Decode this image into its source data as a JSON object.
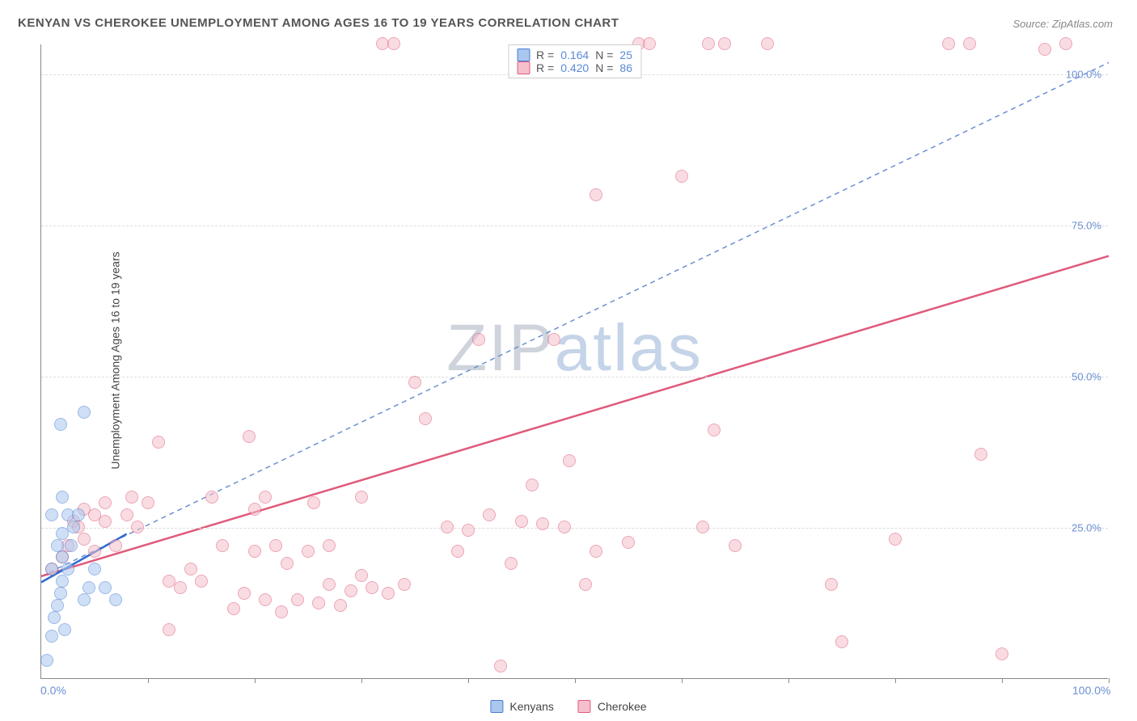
{
  "title": "KENYAN VS CHEROKEE UNEMPLOYMENT AMONG AGES 16 TO 19 YEARS CORRELATION CHART",
  "source": "Source: ZipAtlas.com",
  "ylabel": "Unemployment Among Ages 16 to 19 years",
  "watermark": {
    "part1": "ZIP",
    "part2": "atlas"
  },
  "chart": {
    "type": "scatter",
    "background_color": "#ffffff",
    "grid_color": "#dddddd",
    "axis_color": "#888888",
    "label_color": "#6b8fd4",
    "xlim": [
      0,
      100
    ],
    "ylim": [
      0,
      105
    ],
    "xlim_labels": {
      "min": "0.0%",
      "max": "100.0%"
    },
    "ytick_values": [
      25,
      50,
      75,
      100
    ],
    "ytick_labels": [
      "25.0%",
      "50.0%",
      "75.0%",
      "100.0%"
    ],
    "xtick_values": [
      10,
      20,
      30,
      40,
      50,
      60,
      70,
      80,
      90,
      100
    ],
    "marker_radius": 8,
    "marker_opacity": 0.55,
    "reference_line": {
      "x1": 0,
      "y1": 17,
      "x2": 100,
      "y2": 102,
      "color": "#6b8fd4",
      "dash": "6,5",
      "width": 1.5
    },
    "series": [
      {
        "name": "Kenyans",
        "fill_color": "#a9c7ef",
        "stroke_color": "#4a7fd1",
        "points": [
          [
            0.5,
            3
          ],
          [
            1,
            7
          ],
          [
            1.2,
            10
          ],
          [
            1.5,
            12
          ],
          [
            1.8,
            14
          ],
          [
            2,
            16
          ],
          [
            1,
            18
          ],
          [
            2.5,
            18
          ],
          [
            2,
            20
          ],
          [
            1.5,
            22
          ],
          [
            2.8,
            22
          ],
          [
            2,
            24
          ],
          [
            3,
            25
          ],
          [
            1,
            27
          ],
          [
            2.5,
            27
          ],
          [
            3.5,
            27
          ],
          [
            2,
            30
          ],
          [
            4,
            13
          ],
          [
            4.5,
            15
          ],
          [
            5,
            18
          ],
          [
            6,
            15
          ],
          [
            7,
            13
          ],
          [
            1.8,
            42
          ],
          [
            4,
            44
          ],
          [
            2.2,
            8
          ]
        ],
        "trend": {
          "x1": 0,
          "y1": 16,
          "x2": 8,
          "y2": 24,
          "color": "#2e6bd0",
          "width": 2.5
        },
        "R": "0.164",
        "N": "25"
      },
      {
        "name": "Cherokee",
        "fill_color": "#f5c0cc",
        "stroke_color": "#e05a7c",
        "points": [
          [
            1,
            18
          ],
          [
            2,
            20
          ],
          [
            2.5,
            22
          ],
          [
            3,
            26
          ],
          [
            3.5,
            25
          ],
          [
            4,
            28
          ],
          [
            4,
            23
          ],
          [
            5,
            21
          ],
          [
            5,
            27
          ],
          [
            6,
            26
          ],
          [
            6,
            29
          ],
          [
            7,
            22
          ],
          [
            8,
            27
          ],
          [
            8.5,
            30
          ],
          [
            9,
            25
          ],
          [
            10,
            29
          ],
          [
            11,
            39
          ],
          [
            12,
            16
          ],
          [
            12,
            8
          ],
          [
            13,
            15
          ],
          [
            14,
            18
          ],
          [
            15,
            16
          ],
          [
            16,
            30
          ],
          [
            17,
            22
          ],
          [
            18,
            11.5
          ],
          [
            19,
            14
          ],
          [
            19.5,
            40
          ],
          [
            20,
            21
          ],
          [
            20,
            28
          ],
          [
            21,
            13
          ],
          [
            21,
            30
          ],
          [
            22,
            22
          ],
          [
            22.5,
            11
          ],
          [
            23,
            19
          ],
          [
            24,
            13
          ],
          [
            25,
            21
          ],
          [
            25.5,
            29
          ],
          [
            26,
            12.5
          ],
          [
            27,
            15.5
          ],
          [
            27,
            22
          ],
          [
            28,
            12
          ],
          [
            29,
            14.5
          ],
          [
            30,
            30
          ],
          [
            30,
            17
          ],
          [
            31,
            15
          ],
          [
            32,
            105
          ],
          [
            32.5,
            14
          ],
          [
            33,
            105
          ],
          [
            34,
            15.5
          ],
          [
            35,
            49
          ],
          [
            36,
            43
          ],
          [
            38,
            25
          ],
          [
            39,
            21
          ],
          [
            40,
            24.5
          ],
          [
            41,
            56
          ],
          [
            42,
            27
          ],
          [
            43,
            2
          ],
          [
            44,
            19
          ],
          [
            45,
            26
          ],
          [
            46,
            32
          ],
          [
            47,
            25.5
          ],
          [
            48,
            56
          ],
          [
            49,
            25
          ],
          [
            49.5,
            36
          ],
          [
            51,
            15.5
          ],
          [
            52,
            80
          ],
          [
            52,
            21
          ],
          [
            55,
            22.5
          ],
          [
            56,
            105
          ],
          [
            57,
            105
          ],
          [
            60,
            83
          ],
          [
            62,
            25
          ],
          [
            62.5,
            105
          ],
          [
            63,
            41
          ],
          [
            64,
            105
          ],
          [
            65,
            22
          ],
          [
            68,
            105
          ],
          [
            74,
            15.5
          ],
          [
            75,
            6
          ],
          [
            80,
            23
          ],
          [
            87,
            105
          ],
          [
            88,
            37
          ],
          [
            90,
            4
          ],
          [
            94,
            104
          ],
          [
            96,
            105
          ],
          [
            85,
            105
          ]
        ],
        "trend": {
          "x1": 0,
          "y1": 17,
          "x2": 100,
          "y2": 70,
          "color": "#e05a7c",
          "width": 2.5
        },
        "R": "0.420",
        "N": "86"
      }
    ]
  },
  "legend_top": {
    "r_label": "R =",
    "n_label": "N ="
  }
}
